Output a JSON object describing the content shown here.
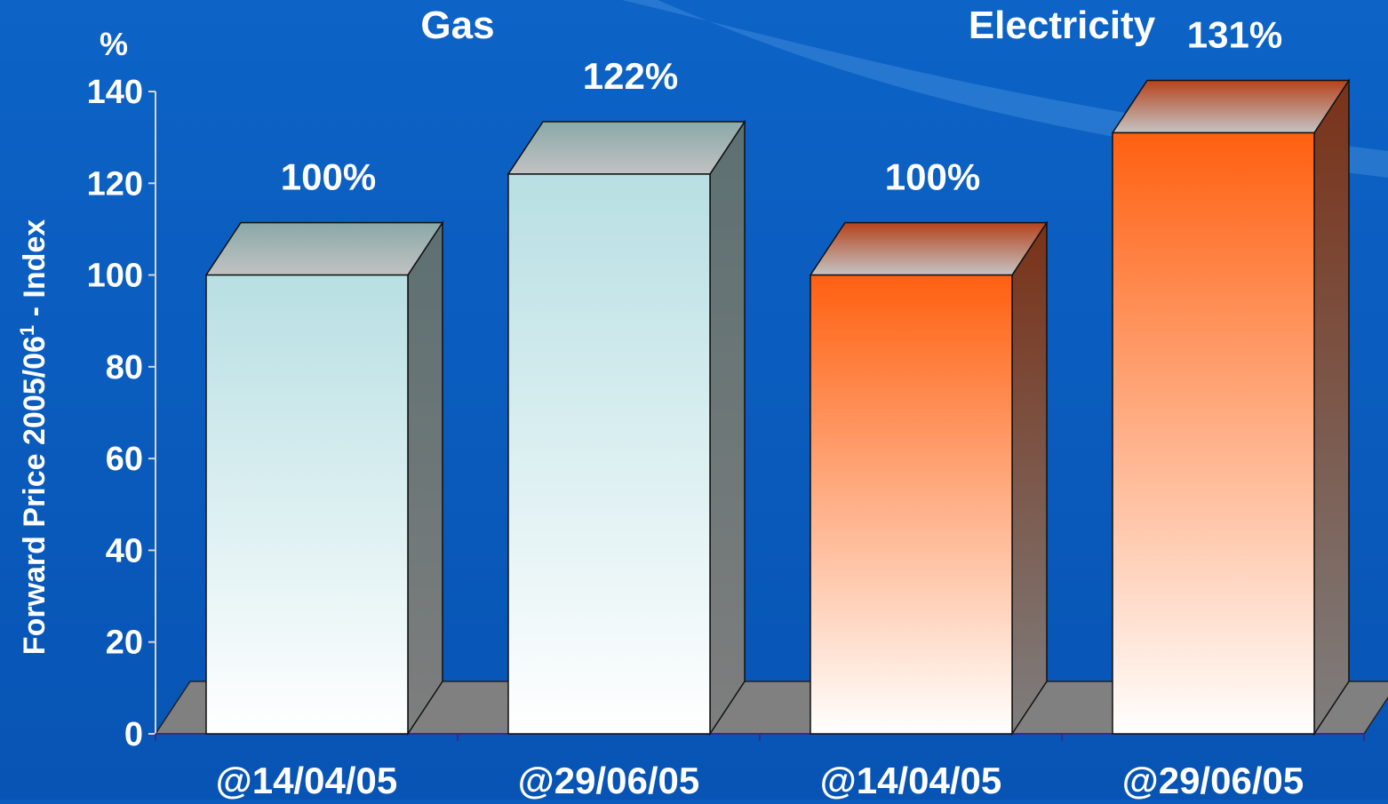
{
  "chart_data": {
    "type": "bar",
    "unit_label": "%",
    "ylabel": "Forward Price 2005/06",
    "ylabel_sup": "1",
    "ylabel_suffix": " - Index",
    "ylim": [
      0,
      140
    ],
    "yticks": [
      0,
      20,
      40,
      60,
      80,
      100,
      120,
      140
    ],
    "groups": [
      {
        "name": "Gas",
        "color_top": "#b8dfe3",
        "color_bottom": "#ffffff",
        "bars": [
          {
            "category": "@14/04/05",
            "value": 100,
            "label": "100%"
          },
          {
            "category": "@29/06/05",
            "value": 122,
            "label": "122%"
          }
        ]
      },
      {
        "name": "Electricity",
        "color_top": "#ff6010",
        "color_bottom": "#ffffff",
        "bars": [
          {
            "category": "@14/04/05",
            "value": 100,
            "label": "100%"
          },
          {
            "category": "@29/06/05",
            "value": 131,
            "label": "131%"
          }
        ]
      }
    ],
    "grid": false,
    "legend": "none"
  }
}
